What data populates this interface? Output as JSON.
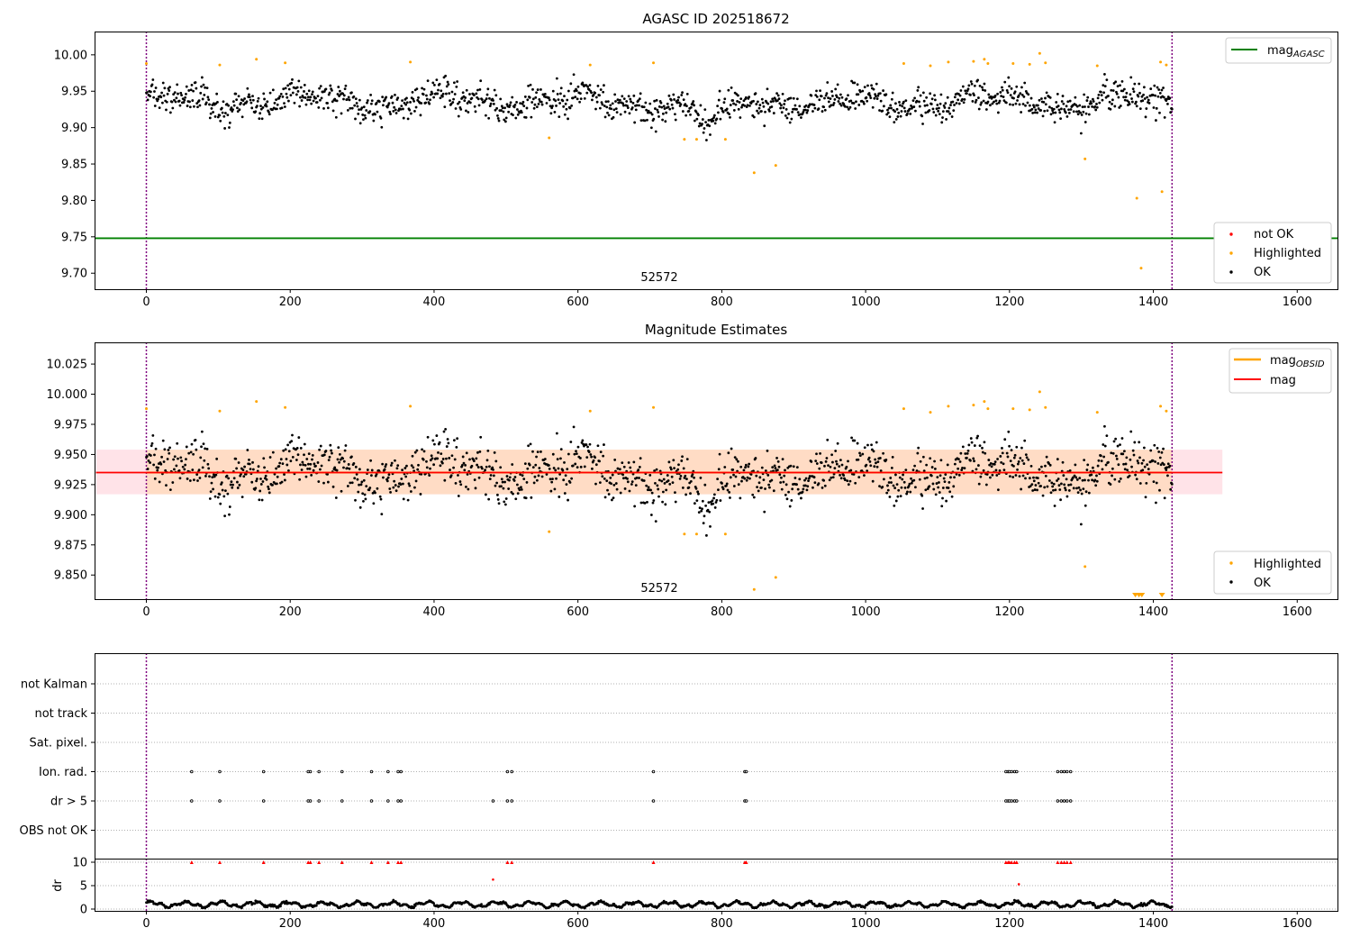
{
  "figure": {
    "colors": {
      "ok": "#000000",
      "highlighted": "#ffa500",
      "not_ok": "#ff0000",
      "mag_agasc": "#008000",
      "mag_obsid": "#ffa500",
      "mag": "#ff0000",
      "band_obsid": "#ffdab9",
      "band_mean": "#ffc0cb",
      "obsid_boundary": "#800080",
      "grid": "#b0b0b0"
    }
  },
  "chart_data": [
    {
      "type": "scatter",
      "title": "AGASC ID 202518672",
      "xlim": [
        -72,
        1656
      ],
      "ylim": [
        9.678,
        10.032
      ],
      "xticks": [
        0,
        200,
        400,
        600,
        800,
        1000,
        1200,
        1400,
        1600
      ],
      "xtick_labels": [
        "0",
        "200",
        "400",
        "600",
        "800",
        "1000",
        "1200",
        "1400",
        "1600"
      ],
      "yticks": [
        9.7,
        9.75,
        9.8,
        9.85,
        9.9,
        9.95,
        10.0
      ],
      "ytick_labels": [
        "9.70",
        "9.75",
        "9.80",
        "9.85",
        "9.90",
        "9.95",
        "10.00"
      ],
      "obsid_boundaries": [
        0,
        1426
      ],
      "obsid_label": "52572",
      "obsid_label_x": 713,
      "mag_agasc": 9.748,
      "line_legend": {
        "label": "mag",
        "subscript": "AGASC",
        "placement": "upper right"
      },
      "point_legend": {
        "placement": "lower right",
        "entries": [
          "not OK",
          "Highlighted",
          "OK"
        ]
      },
      "series": [
        {
          "name": "OK",
          "n_points": 1400,
          "x_range": [
            0,
            1426
          ],
          "mean": 9.935,
          "scatter": 0.018,
          "dip_near_x": 785,
          "dip_value": 9.9
        },
        {
          "name": "Highlighted",
          "points": [
            [
              0,
              9.988
            ],
            [
              102,
              9.986
            ],
            [
              153,
              9.994
            ],
            [
              193,
              9.989
            ],
            [
              367,
              9.99
            ],
            [
              560,
              9.886
            ],
            [
              617,
              9.986
            ],
            [
              705,
              9.989
            ],
            [
              748,
              9.884
            ],
            [
              765,
              9.884
            ],
            [
              805,
              9.884
            ],
            [
              845,
              9.838
            ],
            [
              875,
              9.848
            ],
            [
              1053,
              9.988
            ],
            [
              1090,
              9.985
            ],
            [
              1115,
              9.99
            ],
            [
              1150,
              9.991
            ],
            [
              1165,
              9.994
            ],
            [
              1170,
              9.988
            ],
            [
              1205,
              9.988
            ],
            [
              1228,
              9.987
            ],
            [
              1242,
              10.002
            ],
            [
              1250,
              9.989
            ],
            [
              1305,
              9.857
            ],
            [
              1322,
              9.985
            ],
            [
              1377,
              9.803
            ],
            [
              1383,
              9.707
            ],
            [
              1410,
              9.99
            ],
            [
              1412,
              9.812
            ],
            [
              1418,
              9.986
            ]
          ]
        },
        {
          "name": "not OK",
          "points": []
        }
      ]
    },
    {
      "type": "scatter",
      "title": "Magnitude Estimates",
      "xlim": [
        -72,
        1656
      ],
      "ylim": [
        9.83,
        10.043
      ],
      "xticks": [
        0,
        200,
        400,
        600,
        800,
        1000,
        1200,
        1400,
        1600
      ],
      "xtick_labels": [
        "0",
        "200",
        "400",
        "600",
        "800",
        "1000",
        "1200",
        "1400",
        "1600"
      ],
      "yticks": [
        9.85,
        9.875,
        9.9,
        9.925,
        9.95,
        9.975,
        10.0,
        10.025
      ],
      "ytick_labels": [
        "9.850",
        "9.875",
        "9.900",
        "9.925",
        "9.950",
        "9.975",
        "10.000",
        "10.025"
      ],
      "obsid_boundaries": [
        0,
        1426
      ],
      "obsid_label": "52572",
      "obsid_label_x": 713,
      "mag": 9.935,
      "mag_band": [
        9.917,
        9.954
      ],
      "mag_band_x": [
        -70,
        1496
      ],
      "mag_obsid": 9.935,
      "mag_obsid_band": [
        9.917,
        9.954
      ],
      "mag_obsid_band_x": [
        0,
        1426
      ],
      "line_legend": {
        "placement": "upper right",
        "entries": [
          {
            "label": "mag",
            "subscript": "OBSID"
          },
          {
            "label": "mag",
            "subscript": ""
          }
        ]
      },
      "point_legend": {
        "placement": "lower right",
        "entries": [
          "Highlighted",
          "OK"
        ]
      },
      "series": [
        {
          "name": "OK",
          "n_points": 1400,
          "x_range": [
            0,
            1426
          ],
          "mean": 9.935,
          "scatter": 0.018,
          "dip_near_x": 785,
          "dip_value": 9.9
        },
        {
          "name": "Highlighted",
          "points": [
            [
              0,
              9.988
            ],
            [
              102,
              9.986
            ],
            [
              153,
              9.994
            ],
            [
              193,
              9.989
            ],
            [
              367,
              9.99
            ],
            [
              560,
              9.886
            ],
            [
              617,
              9.986
            ],
            [
              705,
              9.989
            ],
            [
              748,
              9.884
            ],
            [
              765,
              9.884
            ],
            [
              805,
              9.884
            ],
            [
              845,
              9.838
            ],
            [
              875,
              9.848
            ],
            [
              1053,
              9.988
            ],
            [
              1090,
              9.985
            ],
            [
              1115,
              9.99
            ],
            [
              1150,
              9.991
            ],
            [
              1165,
              9.994
            ],
            [
              1170,
              9.988
            ],
            [
              1205,
              9.988
            ],
            [
              1228,
              9.987
            ],
            [
              1242,
              10.002
            ],
            [
              1250,
              9.989
            ],
            [
              1305,
              9.857
            ],
            [
              1322,
              9.985
            ],
            [
              1410,
              9.99
            ],
            [
              1418,
              9.986
            ]
          ]
        },
        {
          "name": "Highlighted (below axis)",
          "markers": "triangle-down",
          "x": [
            1375,
            1380,
            1384,
            1412
          ]
        }
      ]
    },
    {
      "type": "scatter",
      "xlim": [
        -72,
        1656
      ],
      "categories": [
        "not Kalman",
        "not track",
        "Sat. pixel.",
        "Ion. rad.",
        "dr > 5",
        "OBS not OK"
      ],
      "obsid_boundaries": [
        0,
        1426
      ],
      "flag_points": {
        "Ion. rad.": [
          63,
          102,
          163,
          225,
          228,
          240,
          272,
          313,
          336,
          350,
          354,
          502,
          508,
          705,
          832,
          834,
          1195,
          1198,
          1200,
          1203,
          1207,
          1210,
          1267,
          1272,
          1276,
          1280,
          1285
        ],
        "dr > 5": [
          63,
          102,
          163,
          225,
          228,
          240,
          272,
          313,
          336,
          350,
          354,
          482,
          502,
          508,
          705,
          832,
          834,
          1195,
          1198,
          1200,
          1203,
          1207,
          1210,
          1267,
          1272,
          1276,
          1280,
          1285
        ]
      }
    },
    {
      "type": "scatter",
      "ylabel": "dr",
      "xlim": [
        -72,
        1656
      ],
      "ylim": [
        -0.5,
        10
      ],
      "yticks": [
        0,
        5,
        10
      ],
      "ytick_labels": [
        "0",
        "5",
        "10"
      ],
      "xticks": [
        0,
        200,
        400,
        600,
        800,
        1000,
        1200,
        1400,
        1600
      ],
      "xtick_labels": [
        "0",
        "200",
        "400",
        "600",
        "800",
        "1000",
        "1200",
        "1400",
        "1600"
      ],
      "obsid_boundaries": [
        0,
        1426
      ],
      "clipped_marker_x": [
        63,
        102,
        163,
        225,
        228,
        240,
        272,
        313,
        336,
        350,
        354,
        502,
        508,
        705,
        832,
        834,
        1195,
        1198,
        1200,
        1203,
        1207,
        1210,
        1267,
        1272,
        1276,
        1280,
        1285
      ],
      "outliers": [
        [
          482,
          6.3
        ],
        [
          1213,
          5.3
        ]
      ],
      "series": [
        {
          "name": "dr",
          "n_points": 1400,
          "x_range": [
            0,
            1426
          ],
          "typical": 1.0,
          "range": [
            0.2,
            2.0
          ]
        }
      ]
    }
  ]
}
